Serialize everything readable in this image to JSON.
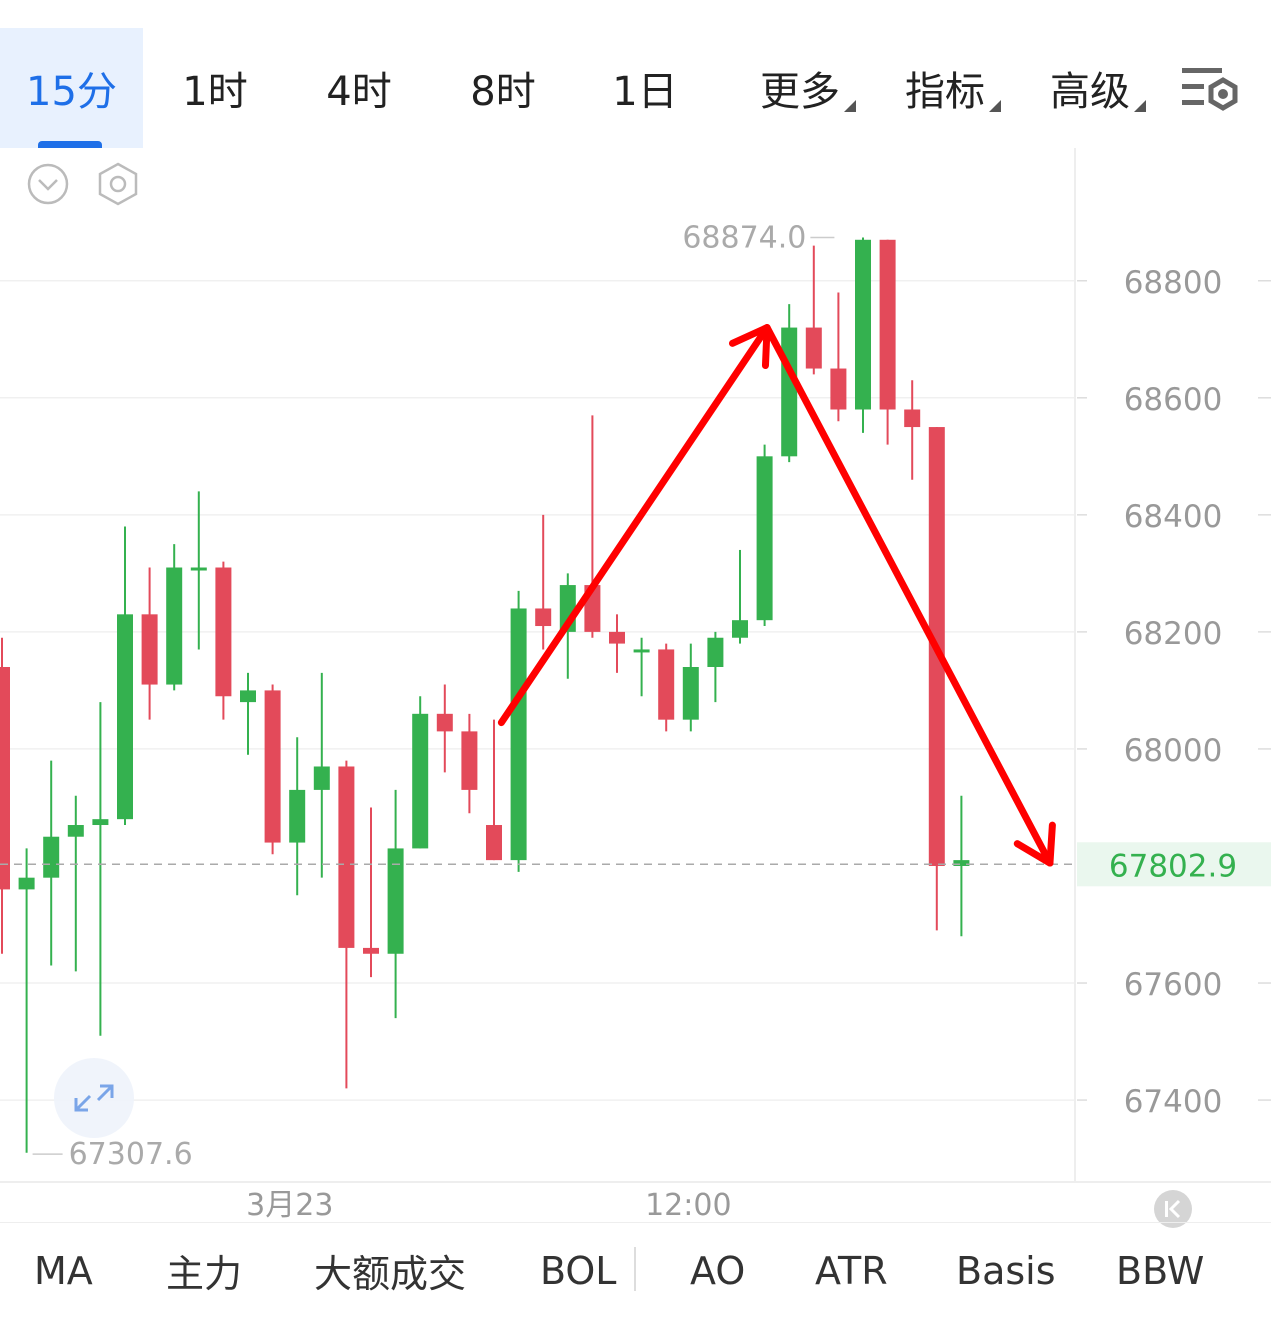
{
  "timeframes": [
    {
      "label": "15分",
      "active": true
    },
    {
      "label": "1时"
    },
    {
      "label": "4时"
    },
    {
      "label": "8时"
    },
    {
      "label": "1日"
    }
  ],
  "menus": [
    {
      "label": "更多"
    },
    {
      "label": "指标"
    },
    {
      "label": "高级"
    }
  ],
  "colors": {
    "up": "#34b14f",
    "down": "#e34a5a",
    "accent": "#1e6fe8",
    "arrow": "#ff0000"
  },
  "chart_data": {
    "type": "candlestick",
    "y_ticks": [
      "68800",
      "68600",
      "68400",
      "68200",
      "68000",
      "67600",
      "67400"
    ],
    "ylim": [
      67260,
      69020
    ],
    "x_ticks": [
      {
        "label": "3月23",
        "index": 11.7
      },
      {
        "label": "12:00",
        "index": 27.9
      }
    ],
    "high_label": "68874.0",
    "high_index": 34,
    "low_label": "67307.6",
    "low_index": 1,
    "current_price": "67802.9",
    "current_value": 67802.9,
    "candles": [
      {
        "o": 68140,
        "h": 68190,
        "l": 67650,
        "c": 67760
      },
      {
        "o": 67760,
        "h": 67830,
        "l": 67310,
        "c": 67780
      },
      {
        "o": 67780,
        "h": 67980,
        "l": 67630,
        "c": 67850
      },
      {
        "o": 67850,
        "h": 67920,
        "l": 67620,
        "c": 67870
      },
      {
        "o": 67870,
        "h": 68080,
        "l": 67510,
        "c": 67880
      },
      {
        "o": 67880,
        "h": 68380,
        "l": 67870,
        "c": 68230
      },
      {
        "o": 68230,
        "h": 68310,
        "l": 68050,
        "c": 68110
      },
      {
        "o": 68110,
        "h": 68350,
        "l": 68100,
        "c": 68310
      },
      {
        "o": 68310,
        "h": 68440,
        "l": 68170,
        "c": 68310
      },
      {
        "o": 68310,
        "h": 68320,
        "l": 68050,
        "c": 68090
      },
      {
        "o": 68080,
        "h": 68130,
        "l": 67990,
        "c": 68100
      },
      {
        "o": 68100,
        "h": 68110,
        "l": 67820,
        "c": 67840
      },
      {
        "o": 67840,
        "h": 68020,
        "l": 67750,
        "c": 67930
      },
      {
        "o": 67930,
        "h": 68130,
        "l": 67780,
        "c": 67970
      },
      {
        "o": 67970,
        "h": 67980,
        "l": 67420,
        "c": 67660
      },
      {
        "o": 67660,
        "h": 67900,
        "l": 67610,
        "c": 67650
      },
      {
        "o": 67650,
        "h": 67930,
        "l": 67540,
        "c": 67830
      },
      {
        "o": 67830,
        "h": 68090,
        "l": 67830,
        "c": 68060
      },
      {
        "o": 68060,
        "h": 68110,
        "l": 67960,
        "c": 68030
      },
      {
        "o": 68030,
        "h": 68060,
        "l": 67890,
        "c": 67930
      },
      {
        "o": 67870,
        "h": 68050,
        "l": 67810,
        "c": 67810
      },
      {
        "o": 67810,
        "h": 68270,
        "l": 67790,
        "c": 68240
      },
      {
        "o": 68240,
        "h": 68400,
        "l": 68170,
        "c": 68210
      },
      {
        "o": 68200,
        "h": 68300,
        "l": 68120,
        "c": 68280
      },
      {
        "o": 68280,
        "h": 68570,
        "l": 68190,
        "c": 68200
      },
      {
        "o": 68200,
        "h": 68230,
        "l": 68130,
        "c": 68180
      },
      {
        "o": 68170,
        "h": 68190,
        "l": 68090,
        "c": 68170
      },
      {
        "o": 68170,
        "h": 68180,
        "l": 68030,
        "c": 68050
      },
      {
        "o": 68050,
        "h": 68180,
        "l": 68030,
        "c": 68140
      },
      {
        "o": 68140,
        "h": 68200,
        "l": 68080,
        "c": 68190
      },
      {
        "o": 68190,
        "h": 68340,
        "l": 68180,
        "c": 68220
      },
      {
        "o": 68220,
        "h": 68520,
        "l": 68210,
        "c": 68500
      },
      {
        "o": 68500,
        "h": 68760,
        "l": 68490,
        "c": 68720
      },
      {
        "o": 68720,
        "h": 68860,
        "l": 68640,
        "c": 68650
      },
      {
        "o": 68650,
        "h": 68780,
        "l": 68560,
        "c": 68580
      },
      {
        "o": 68580,
        "h": 68874,
        "l": 68540,
        "c": 68870
      },
      {
        "o": 68870,
        "h": 68870,
        "l": 68520,
        "c": 68580
      },
      {
        "o": 68580,
        "h": 68630,
        "l": 68460,
        "c": 68550
      },
      {
        "o": 68550,
        "h": 68550,
        "l": 67690,
        "c": 67800
      },
      {
        "o": 67800,
        "h": 67920,
        "l": 67680,
        "c": 67810
      }
    ],
    "arrows": [
      {
        "from": [
          20.3,
          68045
        ],
        "to": [
          31.1,
          68720
        ]
      },
      {
        "from": [
          31.1,
          68720
        ],
        "to": [
          42.6,
          67805
        ]
      }
    ]
  },
  "indicators": [
    "MA",
    "主力",
    "大额成交",
    "BOL",
    "AO",
    "ATR",
    "Basis",
    "BBW"
  ]
}
